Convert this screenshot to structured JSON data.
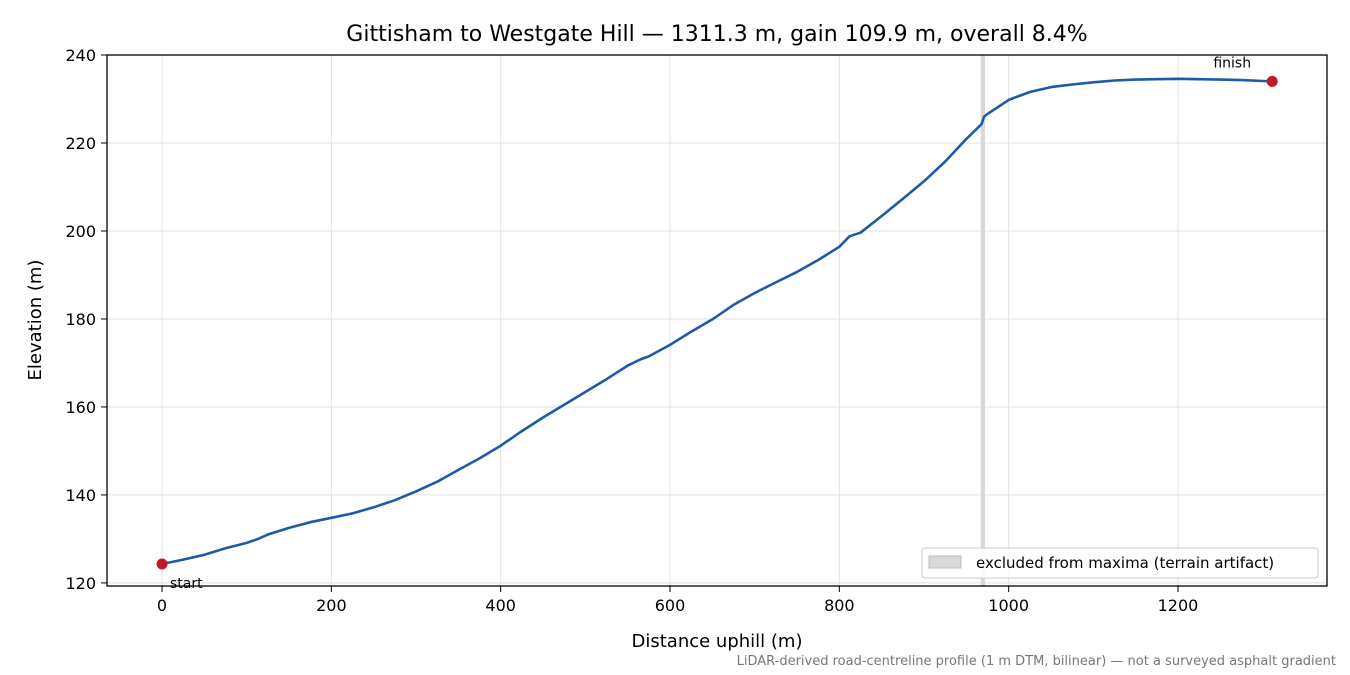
{
  "chart_data": {
    "type": "line",
    "title": "Gittisham to Westgate Hill — 1311.3 m, gain 109.9 m, overall 8.4%",
    "xlabel": "Distance uphill (m)",
    "ylabel": "Elevation (m)",
    "xlim": [
      -65,
      1376
    ],
    "ylim": [
      119.3,
      240
    ],
    "xticks": [
      0,
      200,
      400,
      600,
      800,
      1000,
      1200
    ],
    "yticks": [
      120,
      140,
      160,
      180,
      200,
      220,
      240
    ],
    "grid": true,
    "legend_position": "lower-right",
    "series": [
      {
        "name": "",
        "color": "#1f5aa8",
        "x": [
          0,
          25,
          50,
          75,
          100,
          112,
          125,
          150,
          175,
          200,
          225,
          250,
          275,
          300,
          325,
          350,
          375,
          400,
          425,
          450,
          475,
          500,
          525,
          550,
          565,
          575,
          600,
          625,
          650,
          675,
          700,
          725,
          750,
          775,
          800,
          812,
          825,
          850,
          875,
          900,
          925,
          950,
          968,
          971,
          975,
          1000,
          1025,
          1050,
          1075,
          1100,
          1125,
          1150,
          1175,
          1200,
          1225,
          1250,
          1275,
          1300,
          1311.3
        ],
        "y": [
          124.3,
          125.3,
          126.4,
          127.9,
          129.1,
          129.9,
          131.0,
          132.5,
          133.8,
          134.8,
          135.8,
          137.2,
          138.8,
          140.8,
          143.0,
          145.7,
          148.3,
          151.2,
          154.5,
          157.6,
          160.5,
          163.4,
          166.3,
          169.4,
          170.8,
          171.5,
          174.1,
          177.1,
          179.9,
          183.2,
          185.9,
          188.3,
          190.7,
          193.4,
          196.4,
          198.8,
          199.6,
          203.4,
          207.3,
          211.3,
          215.8,
          220.9,
          224.3,
          226.0,
          226.6,
          229.8,
          231.6,
          232.7,
          233.3,
          233.8,
          234.2,
          234.4,
          234.5,
          234.6,
          234.5,
          234.4,
          234.3,
          234.1,
          234.0
        ]
      }
    ],
    "markers": [
      {
        "label": "start",
        "x": 0,
        "y": 124.3,
        "color": "#c0192a"
      },
      {
        "label": "finish",
        "x": 1311.3,
        "y": 234.0,
        "color": "#c0192a"
      }
    ],
    "excluded_band": {
      "x_from": 967,
      "x_to": 972,
      "color": "#d9d9d9",
      "label": "excluded from maxima (terrain artifact)"
    },
    "footnote": "LiDAR-derived road-centreline profile (1 m DTM, bilinear) — not a surveyed asphalt gradient"
  }
}
